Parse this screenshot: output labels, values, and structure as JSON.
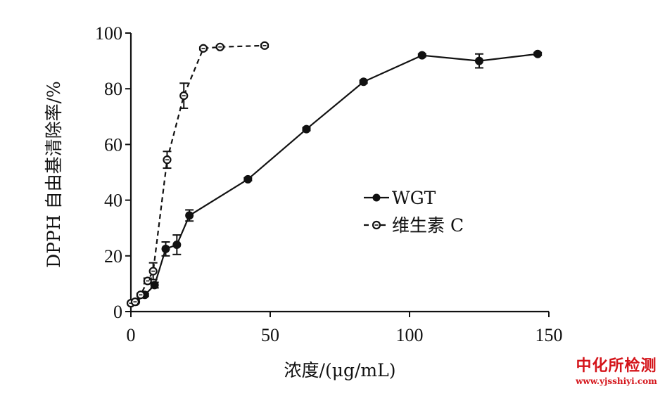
{
  "chart_data": {
    "type": "line",
    "xlabel": "浓度/(μg/mL)",
    "ylabel": "DPPH 自由基清除率/%",
    "xlim": [
      0,
      150
    ],
    "ylim": [
      0,
      100
    ],
    "xticks": [
      0,
      50,
      100,
      150
    ],
    "yticks": [
      0,
      20,
      40,
      60,
      80,
      100
    ],
    "legend_position": "center-right",
    "grid": false,
    "series": [
      {
        "name": "WGT",
        "line": "solid",
        "marker": "filled-circle",
        "color": "#111111",
        "x": [
          0,
          1.8,
          5,
          8.5,
          12.5,
          16.5,
          21,
          42,
          63,
          83.5,
          104.5,
          125,
          146
        ],
        "y": [
          3,
          3.5,
          6,
          9.5,
          22.5,
          24,
          34.5,
          47.5,
          65.5,
          82.5,
          92,
          90,
          92.5
        ],
        "error": [
          0,
          0,
          0.5,
          1,
          2.5,
          3.5,
          2,
          0.5,
          0.5,
          0.5,
          0.5,
          2.5,
          0.5
        ]
      },
      {
        "name": "维生素 C",
        "line": "dashed",
        "marker": "open-circle",
        "color": "#111111",
        "x": [
          0,
          1.5,
          3.5,
          6,
          8,
          13,
          19,
          26,
          32,
          48
        ],
        "y": [
          3,
          3.5,
          6,
          11,
          14.5,
          54.5,
          77.5,
          94.5,
          95,
          95.5
        ],
        "error": [
          0,
          0,
          0.5,
          1,
          3,
          3,
          4.5,
          0.5,
          0.5,
          0.5
        ]
      }
    ]
  },
  "watermark": {
    "main": "中化所检测",
    "url": "www.yjsshiyi.com"
  }
}
